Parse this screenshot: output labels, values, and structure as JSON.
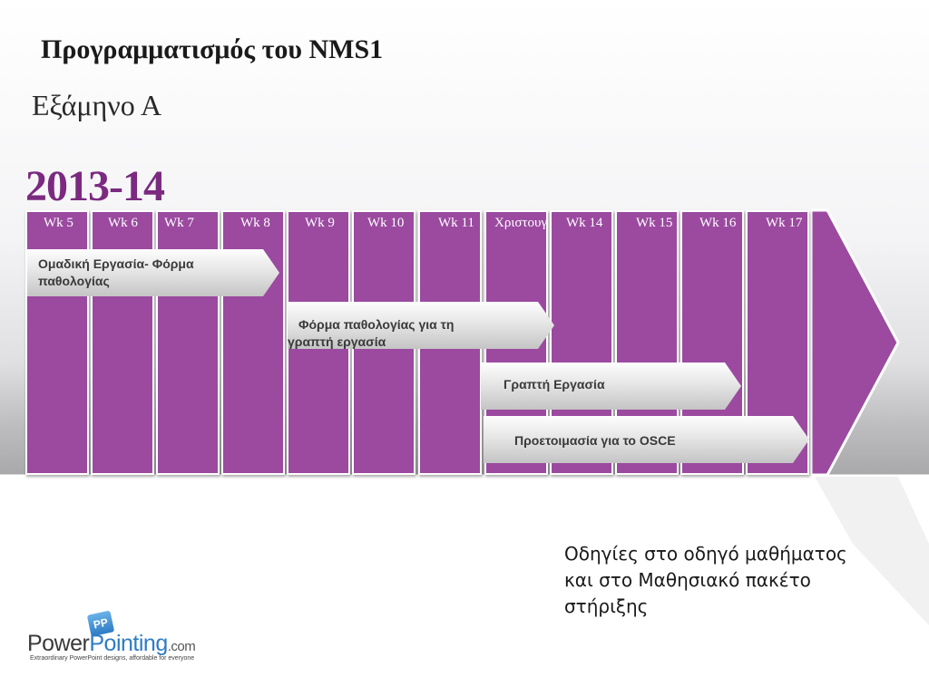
{
  "header": {
    "title": "Προγραμματισμός του NMS1",
    "subtitle": "Εξάμηνο Α",
    "year": "2013-14"
  },
  "colors": {
    "column_fill": "#9b4aa0",
    "year_text": "#7b2a80",
    "bar_fill": "#e0e0e0"
  },
  "weeks": [
    "Wk 5",
    "Wk 6",
    "Wk 7",
    "Wk 8",
    "Wk 9",
    "Wk 10",
    "Wk 11",
    "Χριστουγ",
    "Wk 14",
    "Wk 15",
    "Wk 16",
    "Wk 17"
  ],
  "activities": [
    {
      "lines": [
        "Ομαδική Εργασία- Φόρμα",
        "παθολογίας"
      ]
    },
    {
      "lines": [
        "Φόρμα παθολογίας για τη",
        "γραπτή εργασία"
      ]
    },
    {
      "lines": [
        "Γραπτή Εργασία"
      ]
    },
    {
      "lines": [
        "Προετοιμασία για το OSCE"
      ]
    }
  ],
  "note": {
    "lines": [
      "Οδηγίες στο οδηγό μαθήματος",
      "και στο Μαθησιακό πακέτο",
      "στήριξης"
    ]
  },
  "logo": {
    "icon": "PP",
    "word1": "Power",
    "word2": "Pointing",
    "domain": ".com",
    "tagline": "Extraordinary PowerPoint designs, affordable for everyone"
  }
}
